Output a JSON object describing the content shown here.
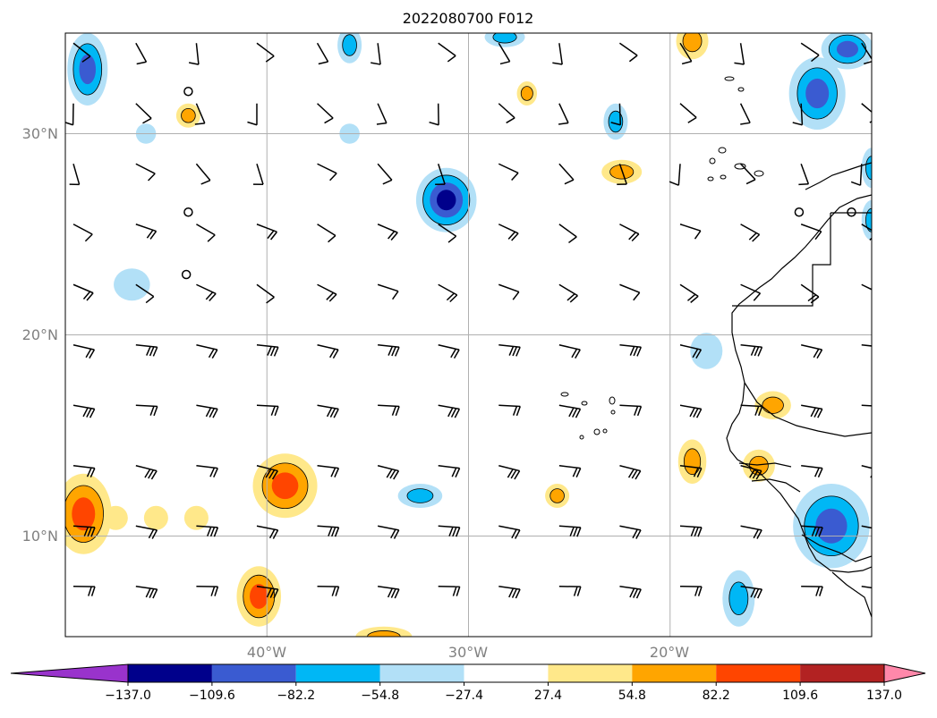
{
  "title": "2022080700 F012",
  "map": {
    "lon_range": [
      -50,
      -10
    ],
    "lat_range": [
      5,
      35
    ],
    "lon_gridlines": [
      -40,
      -30,
      -20
    ],
    "lat_gridlines": [
      10,
      20,
      30
    ],
    "lon_tick_labels": [
      "40°W",
      "30°W",
      "20°W"
    ],
    "lat_tick_labels": [
      "10°N",
      "20°N",
      "30°N"
    ],
    "gridline_color": "#b0b0b0"
  },
  "colorbar": {
    "boundaries": [
      -137.0,
      -109.6,
      -82.2,
      -54.8,
      -27.4,
      27.4,
      54.8,
      82.2,
      109.6,
      137.0
    ],
    "tick_labels": [
      "−137.0",
      "−109.6",
      "−82.2",
      "−54.8",
      "−27.4",
      "27.4",
      "54.8",
      "82.2",
      "109.6",
      "137.0"
    ],
    "under_color": "#9933cc",
    "over_color": "#ff88aa",
    "colors": [
      "#00008b",
      "#3a5bd1",
      "#00b7f5",
      "#b2e0f7",
      "#ffffff",
      "#ffe88a",
      "#ffa500",
      "#ff4500",
      "#b22222"
    ]
  },
  "features": {
    "vorticity_blobs": [
      {
        "lon": -48.9,
        "lat": 33.2,
        "rx": 1.0,
        "ry": 1.8,
        "levels": [
          "#b2e0f7",
          "#00b7f5",
          "#3a5bd1"
        ]
      },
      {
        "lon": -35.9,
        "lat": 34.4,
        "rx": 0.6,
        "ry": 0.9,
        "levels": [
          "#b2e0f7",
          "#00b7f5"
        ]
      },
      {
        "lon": -43.9,
        "lat": 30.9,
        "rx": 0.6,
        "ry": 0.6,
        "levels": [
          "#ffe88a",
          "#ffa500"
        ]
      },
      {
        "lon": -46.0,
        "lat": 30.0,
        "rx": 0.5,
        "ry": 0.5,
        "levels": [
          "#b2e0f7"
        ]
      },
      {
        "lon": -35.9,
        "lat": 30.0,
        "rx": 0.5,
        "ry": 0.5,
        "levels": [
          "#b2e0f7"
        ]
      },
      {
        "lon": -27.1,
        "lat": 32.0,
        "rx": 0.5,
        "ry": 0.6,
        "levels": [
          "#ffe88a",
          "#ffa500"
        ]
      },
      {
        "lon": -22.7,
        "lat": 30.6,
        "rx": 0.6,
        "ry": 0.9,
        "levels": [
          "#b2e0f7",
          "#00b7f5"
        ]
      },
      {
        "lon": -28.2,
        "lat": 34.8,
        "rx": 1.0,
        "ry": 0.5,
        "levels": [
          "#b2e0f7",
          "#00b7f5"
        ]
      },
      {
        "lon": -18.9,
        "lat": 34.6,
        "rx": 0.8,
        "ry": 0.9,
        "levels": [
          "#ffe88a",
          "#ffa500"
        ]
      },
      {
        "lon": -12.7,
        "lat": 32.0,
        "rx": 1.4,
        "ry": 1.8,
        "levels": [
          "#b2e0f7",
          "#00b7f5",
          "#3a5bd1"
        ]
      },
      {
        "lon": -11.2,
        "lat": 34.2,
        "rx": 1.3,
        "ry": 1.0,
        "levels": [
          "#b2e0f7",
          "#00b7f5",
          "#3a5bd1"
        ]
      },
      {
        "lon": -31.1,
        "lat": 26.7,
        "rx": 1.5,
        "ry": 1.6,
        "levels": [
          "#b2e0f7",
          "#00b7f5",
          "#3a5bd1",
          "#00008b"
        ]
      },
      {
        "lon": -22.4,
        "lat": 28.1,
        "rx": 1.0,
        "ry": 0.6,
        "levels": [
          "#ffe88a",
          "#ffa500"
        ]
      },
      {
        "lon": -10.0,
        "lat": 28.3,
        "rx": 0.5,
        "ry": 1.0,
        "levels": [
          "#b2e0f7",
          "#00b7f5"
        ]
      },
      {
        "lon": -10.0,
        "lat": 25.7,
        "rx": 0.5,
        "ry": 1.0,
        "levels": [
          "#b2e0f7",
          "#00b7f5"
        ]
      },
      {
        "lon": -46.7,
        "lat": 22.5,
        "rx": 0.9,
        "ry": 0.8,
        "levels": [
          "#b2e0f7"
        ]
      },
      {
        "lon": -18.2,
        "lat": 19.2,
        "rx": 0.8,
        "ry": 0.9,
        "levels": [
          "#b2e0f7"
        ]
      },
      {
        "lon": -14.9,
        "lat": 16.5,
        "rx": 0.9,
        "ry": 0.7,
        "levels": [
          "#ffe88a",
          "#ffa500"
        ]
      },
      {
        "lon": -18.9,
        "lat": 13.7,
        "rx": 0.7,
        "ry": 1.1,
        "levels": [
          "#ffe88a",
          "#ffa500"
        ]
      },
      {
        "lon": -15.6,
        "lat": 13.5,
        "rx": 0.8,
        "ry": 0.8,
        "levels": [
          "#ffe88a",
          "#ffa500"
        ]
      },
      {
        "lon": -25.6,
        "lat": 12.0,
        "rx": 0.6,
        "ry": 0.6,
        "levels": [
          "#ffe88a",
          "#ffa500"
        ]
      },
      {
        "lon": -32.4,
        "lat": 12.0,
        "rx": 1.1,
        "ry": 0.6,
        "levels": [
          "#b2e0f7",
          "#00b7f5"
        ]
      },
      {
        "lon": -39.1,
        "lat": 12.5,
        "rx": 1.6,
        "ry": 1.6,
        "levels": [
          "#ffe88a",
          "#ffa500",
          "#ff4500"
        ]
      },
      {
        "lon": -49.1,
        "lat": 11.1,
        "rx": 1.4,
        "ry": 2.0,
        "levels": [
          "#ffe88a",
          "#ffa500",
          "#ff4500"
        ]
      },
      {
        "lon": -47.5,
        "lat": 10.9,
        "rx": 0.6,
        "ry": 0.6,
        "levels": [
          "#ffe88a"
        ]
      },
      {
        "lon": -45.5,
        "lat": 10.9,
        "rx": 0.6,
        "ry": 0.6,
        "levels": [
          "#ffe88a"
        ]
      },
      {
        "lon": -43.5,
        "lat": 10.9,
        "rx": 0.6,
        "ry": 0.6,
        "levels": [
          "#ffe88a"
        ]
      },
      {
        "lon": -40.4,
        "lat": 7.0,
        "rx": 1.1,
        "ry": 1.5,
        "levels": [
          "#ffe88a",
          "#ffa500",
          "#ff4500"
        ]
      },
      {
        "lon": -34.2,
        "lat": 5.0,
        "rx": 1.4,
        "ry": 0.5,
        "levels": [
          "#ffe88a",
          "#ffa500"
        ]
      },
      {
        "lon": -12.0,
        "lat": 10.5,
        "rx": 1.9,
        "ry": 2.1,
        "levels": [
          "#b2e0f7",
          "#00b7f5",
          "#3a5bd1"
        ]
      },
      {
        "lon": -16.6,
        "lat": 6.9,
        "rx": 0.8,
        "ry": 1.4,
        "levels": [
          "#b2e0f7",
          "#00b7f5"
        ]
      }
    ],
    "station_circles": [
      {
        "lon": -43.9,
        "lat": 32.1
      },
      {
        "lon": -43.9,
        "lat": 26.1
      },
      {
        "lon": -44.0,
        "lat": 23.0
      },
      {
        "lon": -13.6,
        "lat": 26.1
      },
      {
        "lon": -11.0,
        "lat": 26.1
      }
    ],
    "barb_lons": [
      -49.6,
      -46.5,
      -43.5,
      -40.5,
      -37.5,
      -34.5,
      -31.5,
      -28.5,
      -25.5,
      -22.5,
      -19.5,
      -16.5,
      -13.5,
      -10.5
    ],
    "barb_lats": [
      7.5,
      10.5,
      13.5,
      16.5,
      19.5,
      22.5,
      25.5,
      28.5,
      31.5,
      34.5
    ]
  }
}
